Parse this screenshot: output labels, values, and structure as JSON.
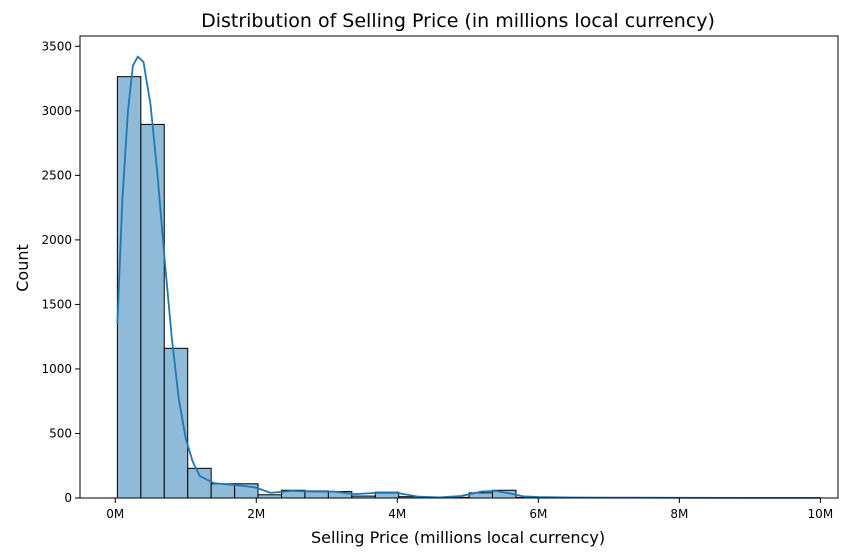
{
  "chart_data": {
    "type": "bar",
    "title": "Distribution of Selling Price (in millions local currency)",
    "xlabel": "Selling Price (millions local currency)",
    "ylabel": "Count",
    "xlim": [
      -0.5,
      10.25
    ],
    "ylim": [
      0,
      3580
    ],
    "grid": false,
    "legend": "none",
    "bar_color": "#8fbbd9",
    "edge_color": "#000000",
    "kde_color": "#1f77b4",
    "x_ticks": [
      0,
      2,
      4,
      6,
      8,
      10
    ],
    "x_tick_labels": [
      "0M",
      "2M",
      "4M",
      "6M",
      "8M",
      "10M"
    ],
    "y_ticks": [
      0,
      500,
      1000,
      1500,
      2000,
      2500,
      3000,
      3500
    ],
    "y_tick_labels": [
      "0",
      "500",
      "1000",
      "1500",
      "2000",
      "2500",
      "3000",
      "3500"
    ],
    "bin_edges": [
      0.03,
      0.363,
      0.695,
      1.028,
      1.36,
      1.693,
      2.025,
      2.358,
      2.69,
      3.023,
      3.355,
      3.688,
      4.02,
      4.353,
      4.685,
      5.018,
      5.35,
      5.683,
      6.015,
      6.348,
      6.68,
      7.013,
      7.345,
      7.678,
      8.01,
      8.343,
      8.675,
      9.008,
      9.34,
      9.673,
      10.005
    ],
    "counts": [
      3265,
      2895,
      1160,
      230,
      110,
      110,
      25,
      60,
      55,
      50,
      15,
      45,
      10,
      5,
      5,
      40,
      60,
      5,
      0,
      0,
      0,
      0,
      0,
      0,
      0,
      0,
      0,
      0,
      0,
      1
    ],
    "kde": {
      "x": [
        0.03,
        0.1,
        0.18,
        0.25,
        0.32,
        0.4,
        0.5,
        0.6,
        0.7,
        0.8,
        0.9,
        1.0,
        1.1,
        1.2,
        1.4,
        1.6,
        1.8,
        2.0,
        2.2,
        2.5,
        2.8,
        3.1,
        3.4,
        3.7,
        4.0,
        4.3,
        4.6,
        4.9,
        5.2,
        5.4,
        5.6,
        5.8,
        6.0,
        6.5,
        7.0,
        8.0,
        9.0,
        10.0
      ],
      "y": [
        1350,
        2300,
        3000,
        3350,
        3420,
        3380,
        3050,
        2500,
        1850,
        1250,
        770,
        460,
        280,
        170,
        115,
        105,
        95,
        80,
        40,
        55,
        50,
        50,
        30,
        40,
        40,
        10,
        5,
        15,
        50,
        55,
        35,
        12,
        8,
        4,
        3,
        2,
        1,
        1
      ]
    }
  }
}
